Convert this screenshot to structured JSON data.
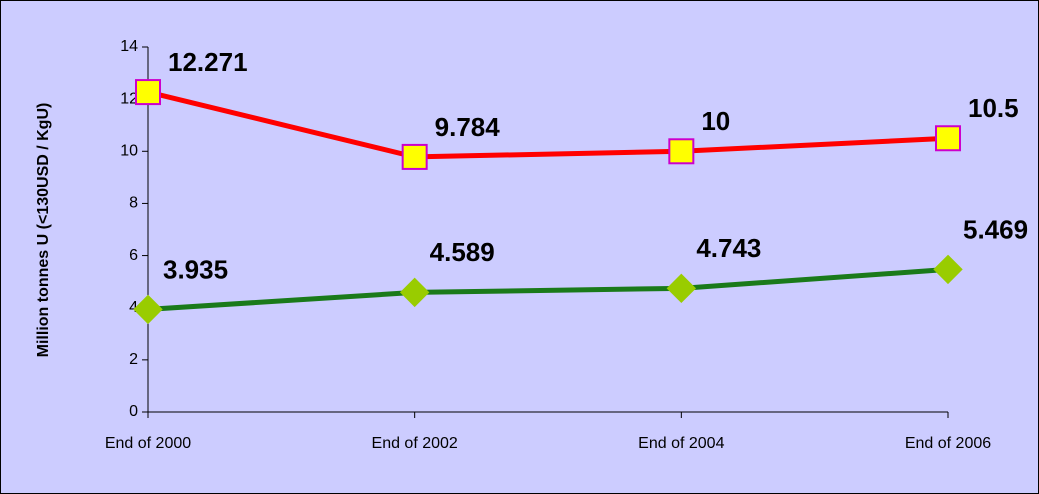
{
  "chart_data": {
    "type": "line",
    "y_label": "Million tonnes U (<130USD / KgU)",
    "categories": [
      "End of 2000",
      "End of 2002",
      "End of 2004",
      "End of 2006"
    ],
    "series": [
      {
        "color": "#ff0000",
        "marker": "square",
        "marker_color": "#ffff00",
        "marker_edge": "#cc00cc",
        "values": [
          12.271,
          9.784,
          10,
          10.5
        ]
      },
      {
        "color": "#1a7a1a",
        "marker": "diamond",
        "marker_color": "#99cc00",
        "marker_edge": "#99cc00",
        "values": [
          3.935,
          4.589,
          4.743,
          5.469
        ]
      }
    ],
    "ylim": [
      0,
      14
    ],
    "yticks": [
      0,
      2,
      4,
      6,
      8,
      10,
      12,
      14
    ]
  }
}
